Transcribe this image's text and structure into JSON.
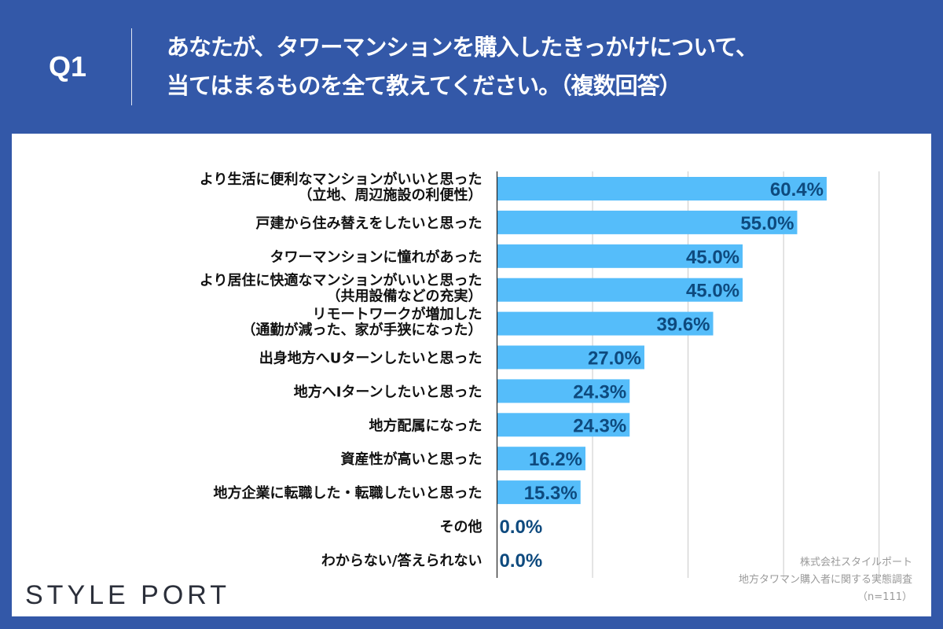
{
  "header": {
    "qnum": "Q1",
    "question_line1": "あなたが、タワーマンションを購入したきっかけについて、",
    "question_line2": "当てはまるものを全て教えてください。（複数回答）"
  },
  "source": {
    "line1": "株式会社スタイルポート",
    "line2": "地方タワマン購入者に関する実態調査",
    "line3": "（n=111）"
  },
  "logo": "STYLE PORT",
  "colors": {
    "background": "#3358a8",
    "bar": "#55bdfa",
    "value_text": "#0e4a7e"
  },
  "chart_data": {
    "type": "bar",
    "orientation": "horizontal",
    "xlim": [
      0,
      70
    ],
    "grid": true,
    "categories": [
      [
        "より生活に便利なマンションがいいと思った",
        "（立地、周辺施設の利便性）"
      ],
      [
        "戸建から住み替えをしたいと思った"
      ],
      [
        "タワーマンションに憧れがあった"
      ],
      [
        "より居住に快適なマンションがいいと思った",
        "（共用設備などの充実）"
      ],
      [
        "リモートワークが増加した",
        "（通勤が減った、家が手狭になった）"
      ],
      [
        "出身地方へUターンしたいと思った"
      ],
      [
        "地方へIターンしたいと思った"
      ],
      [
        "地方配属になった"
      ],
      [
        "資産性が高いと思った"
      ],
      [
        "地方企業に転職した・転職したいと思った"
      ],
      [
        "その他"
      ],
      [
        "わからない/答えられない"
      ]
    ],
    "values": [
      60.4,
      55.0,
      45.0,
      45.0,
      39.6,
      27.0,
      24.3,
      24.3,
      16.2,
      15.3,
      0.0,
      0.0
    ],
    "data_labels": [
      "60.4%",
      "55.0%",
      "45.0%",
      "45.0%",
      "39.6%",
      "27.0%",
      "24.3%",
      "24.3%",
      "16.2%",
      "15.3%",
      "0.0%",
      "0.0%"
    ]
  }
}
